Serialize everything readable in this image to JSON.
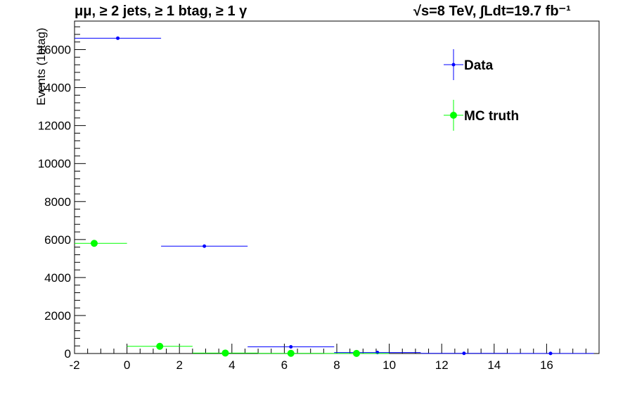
{
  "chart_data": {
    "type": "scatter",
    "title_left": "μμ, ≥ 2 jets, ≥ 1 btag, ≥ 1 γ",
    "title_right": "√s=8 TeV,  ∫Ldt=19.7 fb⁻¹",
    "xlabel": "",
    "ylabel": "Events (1btag)",
    "xlim": [
      -2,
      18
    ],
    "ylim": [
      0,
      17500
    ],
    "x_ticks": [
      -2,
      0,
      2,
      4,
      6,
      8,
      10,
      12,
      14,
      16
    ],
    "y_ticks": [
      0,
      2000,
      4000,
      6000,
      8000,
      10000,
      12000,
      14000,
      16000
    ],
    "grid": false,
    "legend_position": "top-right",
    "series": [
      {
        "name": "Data",
        "color": "#0000ff",
        "marker": "small-dot",
        "x": [
          -0.35,
          2.95,
          6.25,
          9.55,
          12.85,
          16.15
        ],
        "xerr": [
          1.65,
          1.65,
          1.65,
          1.65,
          1.65,
          1.65
        ],
        "y": [
          16600,
          5650,
          350,
          50,
          10,
          5
        ]
      },
      {
        "name": "MC truth",
        "color": "#00ff00",
        "marker": "large-dot",
        "x": [
          -1.25,
          1.25,
          3.75,
          6.25,
          8.75
        ],
        "xerr": [
          1.25,
          1.25,
          1.25,
          1.25,
          1.25
        ],
        "y": [
          5800,
          380,
          25,
          10,
          5
        ]
      }
    ]
  }
}
